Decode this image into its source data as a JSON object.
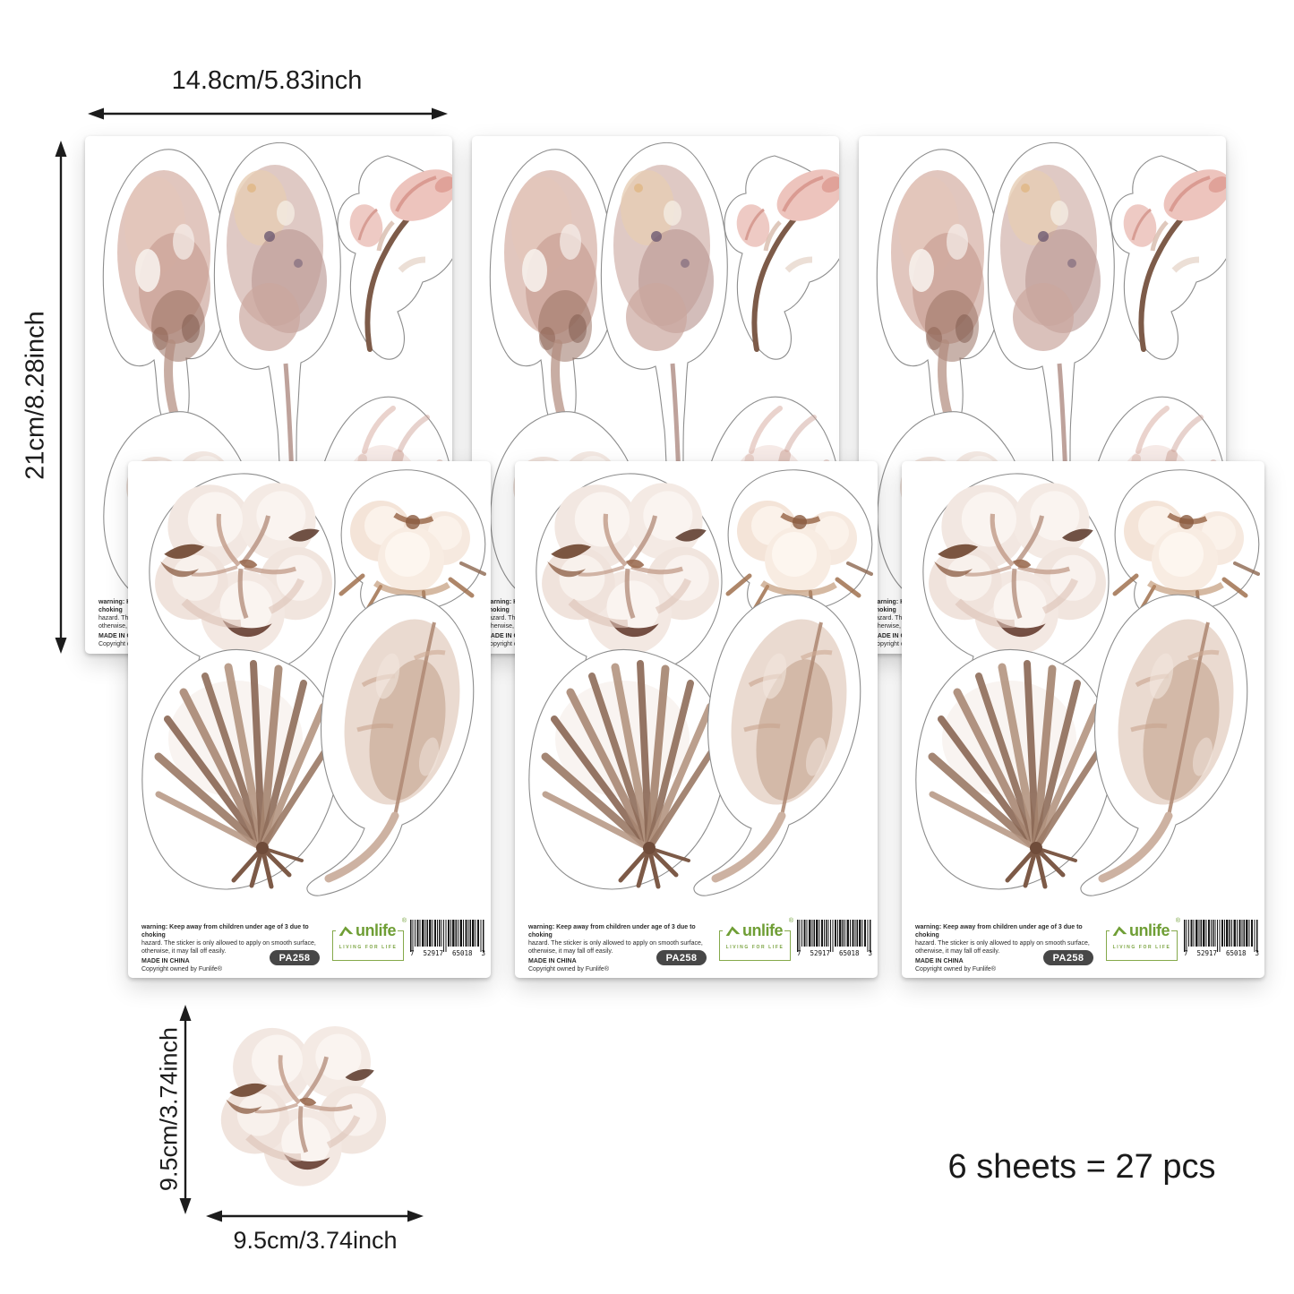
{
  "annotations": {
    "sheet_width_label": "14.8cm/5.83inch",
    "sheet_height_label": "21cm/8.28inch",
    "sticker_height_label": "9.5cm/3.74inch",
    "sticker_width_label": "9.5cm/3.74inch",
    "pack_count": "6 sheets = 27 pcs"
  },
  "sheet_footer": {
    "warning_line1": "warning: Keep away from children under age of 3 due to choking",
    "warning_line2": "hazard. The sticker is only allowed to apply on smooth surface,",
    "warning_line3": "otherwise, it may fall off easily.",
    "made_in": "MADE IN CHINA",
    "copyright": "Copyright owned by Funlife®",
    "model_code": "PA258",
    "brand_name": "unlife",
    "brand_tagline": "LIVING FOR LIFE",
    "barcode_digit_left": "7",
    "barcode_group1": "52917",
    "barcode_group2": "65018",
    "barcode_digit_right": "3"
  },
  "stickers": {
    "back_sheet_items": [
      "dried-leaf",
      "dried-flower-spike",
      "magnolia-buds",
      "pampas-plume",
      "cotton-flower-partial"
    ],
    "front_sheet_items": [
      "cotton-flower",
      "cotton-bud",
      "fan-palm-leaf",
      "feather-plume"
    ],
    "single_sticker": "cotton-flower"
  },
  "colors": {
    "brand_green": "#6f9e35",
    "model_pill": "#474747",
    "annotation_text": "#1c1c1c",
    "watercolor_rose": "#d3b0a5",
    "watercolor_brown": "#7a5341",
    "cotton_cream": "#f3e9e3"
  }
}
